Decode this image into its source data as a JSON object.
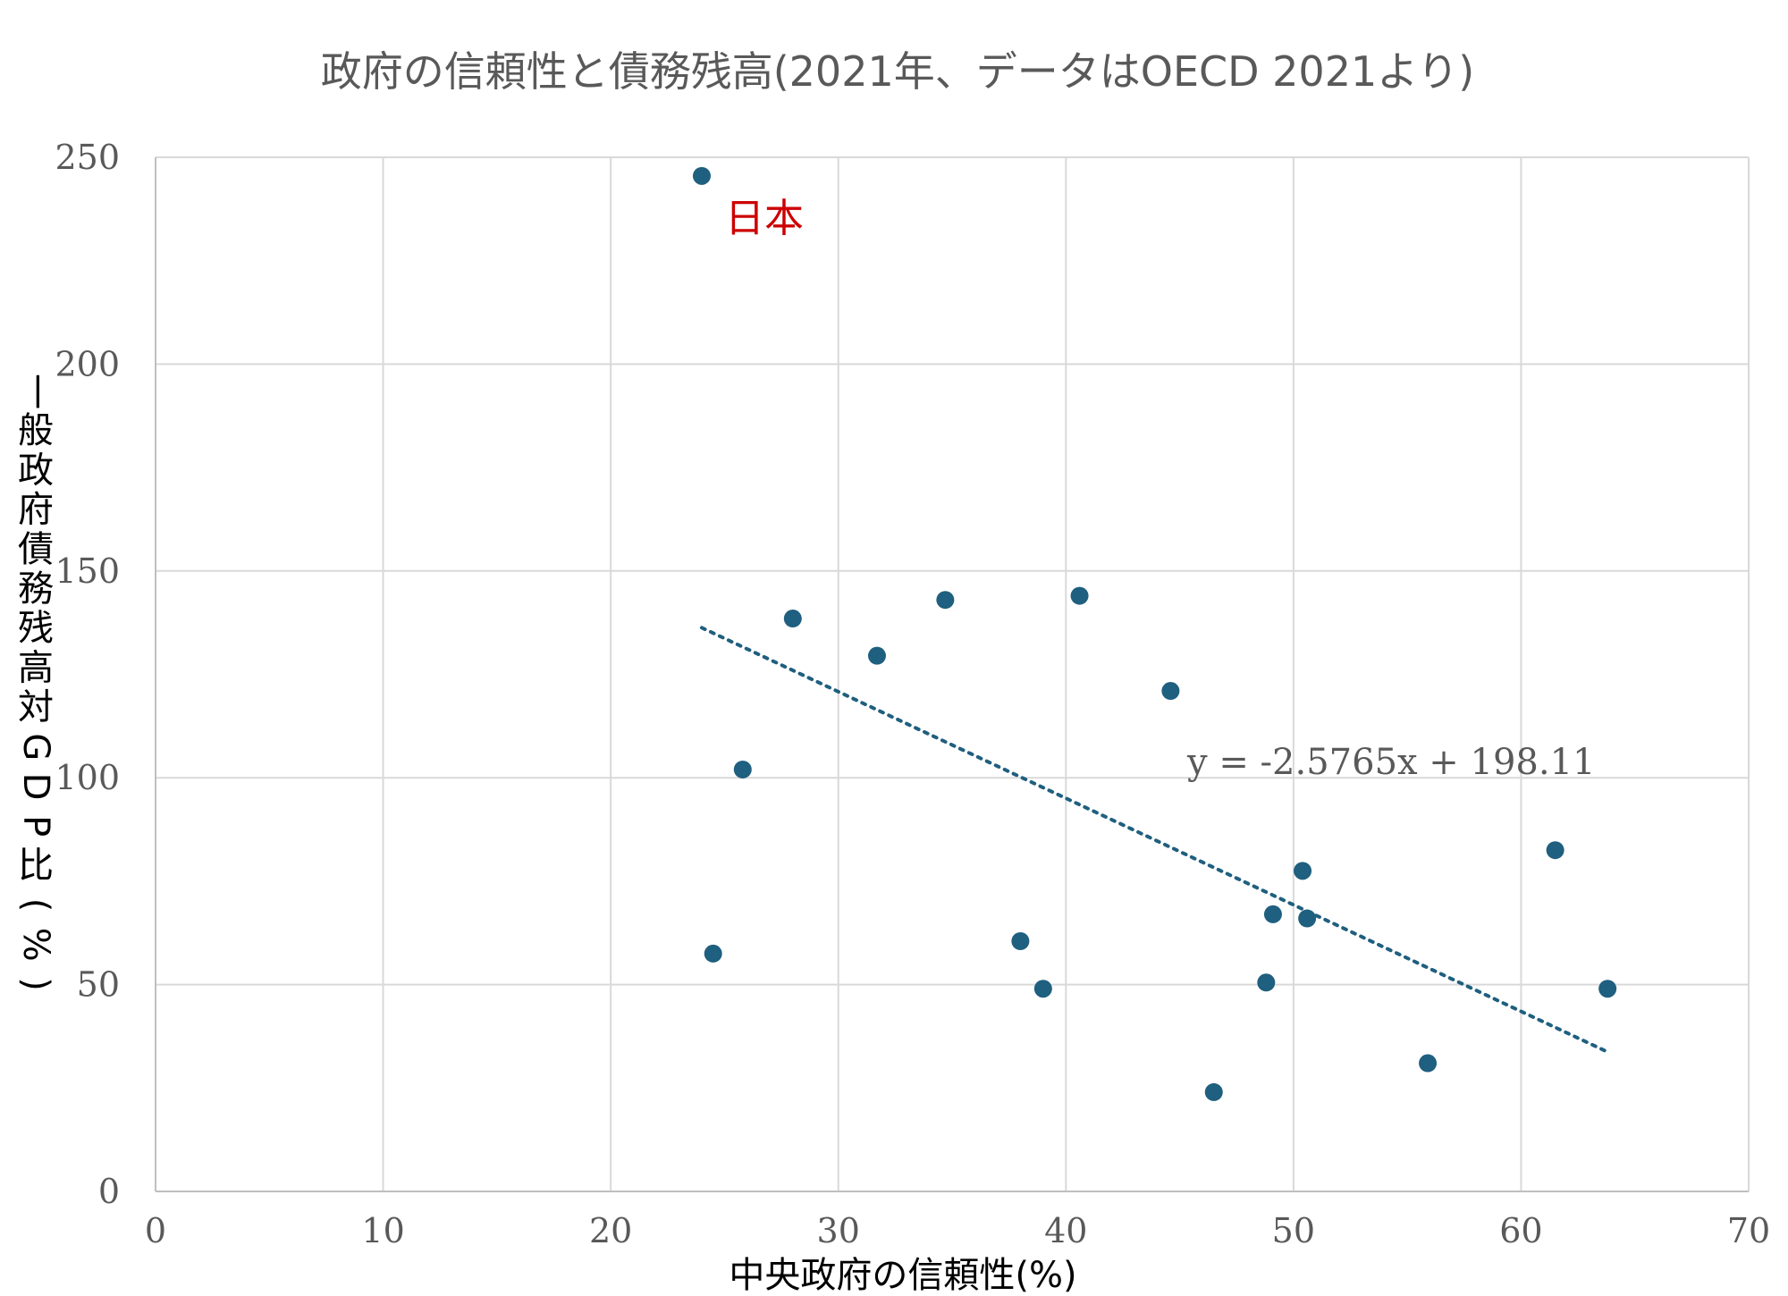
{
  "chart_data": {
    "type": "scatter",
    "title": "政府の信頼性と債務残高(2021年、データはOECD 2021より)",
    "xlabel": "中央政府の信頼性(%)",
    "ylabel": "一般政府債務残高対GDP比(%)",
    "xlim": [
      0,
      70
    ],
    "ylim": [
      0,
      250
    ],
    "x_ticks": [
      "0",
      "10",
      "20",
      "30",
      "40",
      "50",
      "60",
      "70"
    ],
    "y_ticks": [
      "0",
      "50",
      "100",
      "150",
      "200",
      "250"
    ],
    "grid": true,
    "legend": "none",
    "series": [
      {
        "color": "#1f5f7f",
        "points": [
          {
            "x": 24.0,
            "y": 245.5
          },
          {
            "x": 24.5,
            "y": 57.5
          },
          {
            "x": 25.8,
            "y": 102.0
          },
          {
            "x": 28.0,
            "y": 138.5
          },
          {
            "x": 31.7,
            "y": 129.5
          },
          {
            "x": 34.7,
            "y": 143.0
          },
          {
            "x": 38.0,
            "y": 60.5
          },
          {
            "x": 39.0,
            "y": 49.0
          },
          {
            "x": 40.6,
            "y": 144.0
          },
          {
            "x": 44.6,
            "y": 121.0
          },
          {
            "x": 46.5,
            "y": 24.0
          },
          {
            "x": 48.8,
            "y": 50.5
          },
          {
            "x": 49.1,
            "y": 67.0
          },
          {
            "x": 50.4,
            "y": 77.5
          },
          {
            "x": 50.6,
            "y": 66.0
          },
          {
            "x": 55.9,
            "y": 31.0
          },
          {
            "x": 61.5,
            "y": 82.5
          },
          {
            "x": 63.8,
            "y": 49.0
          }
        ]
      }
    ],
    "trendline": {
      "type": "linear",
      "slope": -2.5765,
      "intercept": 198.11,
      "x_range": [
        24.0,
        63.8
      ],
      "equation_label": "y = -2.5765x + 198.11",
      "color": "#1f5f7f",
      "style": "dotted"
    },
    "annotations": [
      {
        "text": "日本",
        "x": 24.0,
        "y": 245.5,
        "color": "#cc0000"
      }
    ]
  }
}
